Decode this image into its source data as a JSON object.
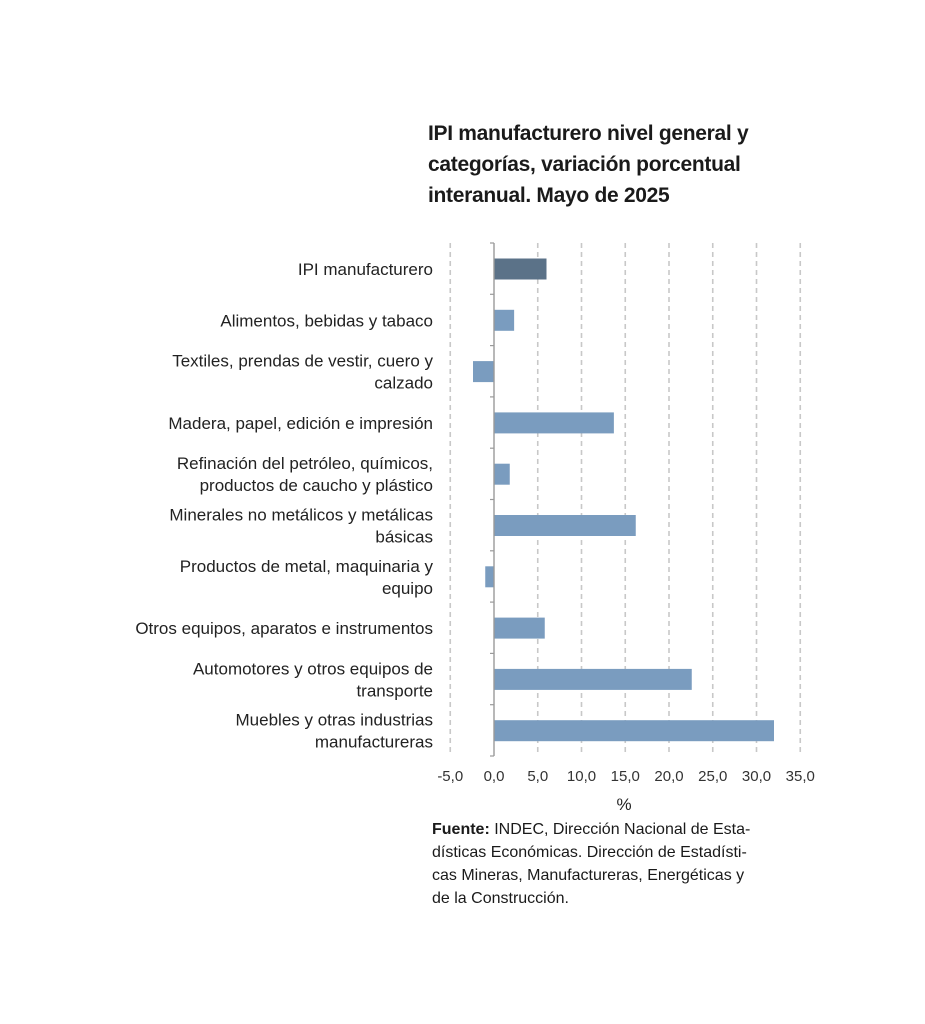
{
  "title_lines": [
    "IPI manufacturero nivel general y",
    "categorías, variación porcentual",
    "interanual. Mayo de 2025"
  ],
  "chart_data": {
    "type": "bar",
    "orientation": "horizontal",
    "categories": [
      [
        "IPI manufacturero"
      ],
      [
        "Alimentos, bebidas y tabaco"
      ],
      [
        "Textiles, prendas de vestir, cuero y",
        "calzado"
      ],
      [
        "Madera, papel, edición e impresión"
      ],
      [
        "Refinación del petróleo, químicos,",
        "productos de caucho y plástico"
      ],
      [
        "Minerales no metálicos y metálicas",
        "básicas"
      ],
      [
        "Productos de metal, maquinaria y",
        "equipo"
      ],
      [
        "Otros equipos, aparatos e instrumentos"
      ],
      [
        "Automotores y otros equipos de",
        "transporte"
      ],
      [
        "Muebles y otras industrias",
        "manufactureras"
      ]
    ],
    "values": [
      6.0,
      2.3,
      -2.4,
      13.7,
      1.8,
      16.2,
      -1.0,
      5.8,
      22.6,
      32.0
    ],
    "xlabel": "%",
    "xlim": [
      -5,
      35
    ],
    "xticks": [
      "-5,0",
      "0,0",
      "5,0",
      "10,0",
      "15,0",
      "20,0",
      "25,0",
      "30,0",
      "35,0"
    ],
    "grid": "vertical dashed",
    "colors": {
      "highlight": "#5b7288",
      "bars": "#7a9cbf",
      "grid": "#c8c8c8",
      "axis": "#9a9a9a"
    }
  },
  "source": {
    "bold": "Fuente:",
    "lines": [
      " INDEC, Dirección Nacional de Esta-",
      "dísticas Económicas. Dirección de Estadísti-",
      "cas Mineras, Manufactureras, Energéticas y",
      "de la Construcción."
    ]
  }
}
